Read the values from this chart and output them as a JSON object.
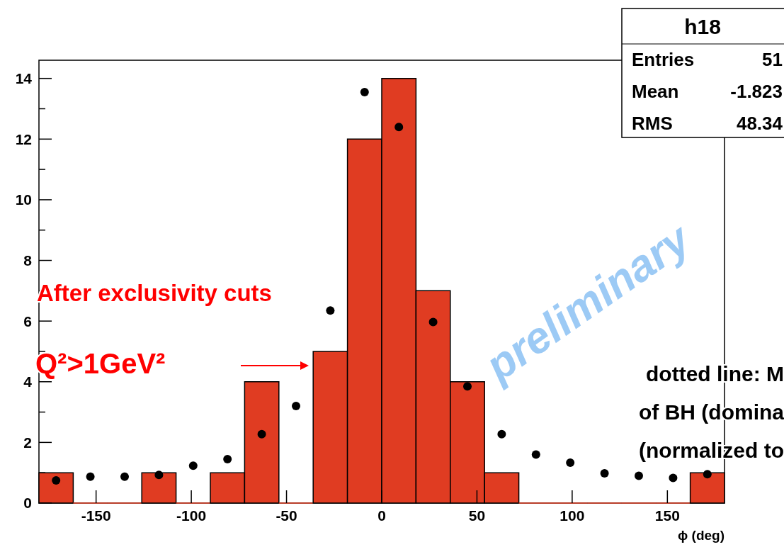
{
  "chart_data": {
    "type": "histogram",
    "xlabel": "ϕ (deg)",
    "bins": [
      -180,
      -162,
      -144,
      -126,
      -108,
      -90,
      -72,
      -54,
      -36,
      -18,
      0,
      18,
      36,
      54,
      72,
      90,
      108,
      126,
      144,
      162,
      180
    ],
    "series": [
      {
        "color": "#e03c22",
        "values": [
          1,
          0,
          0,
          1,
          0,
          1,
          4,
          0,
          5,
          12,
          14,
          7,
          4,
          1,
          0,
          0,
          0,
          0,
          0,
          1
        ]
      },
      {
        "type": "scatter",
        "color": "#000000",
        "x": [
          -171,
          -153,
          -135,
          -117,
          -99,
          -81,
          -63,
          -45,
          -27,
          -9,
          9,
          27,
          45,
          63,
          81,
          99,
          117,
          135,
          153,
          171
        ],
        "values": [
          0.75,
          0.87,
          0.87,
          0.93,
          1.23,
          1.45,
          2.27,
          3.2,
          6.35,
          13.55,
          12.4,
          5.97,
          3.85,
          2.27,
          1.6,
          1.33,
          0.98,
          0.9,
          0.83,
          0.95
        ]
      }
    ],
    "marker": "circle",
    "xlim": [
      -180,
      180
    ],
    "ylim": [
      0,
      14.6
    ],
    "xticks": [
      -150,
      -100,
      -50,
      0,
      50,
      100,
      150
    ],
    "yticks": [
      0,
      {
        "value": 1,
        "label": null
      },
      2,
      {
        "value": 3,
        "label": null
      },
      4,
      {
        "value": 5,
        "label": null
      },
      6,
      {
        "value": 7,
        "label": null
      },
      8,
      {
        "value": 9,
        "label": null
      },
      10,
      {
        "value": 11,
        "label": null
      },
      12,
      {
        "value": 13,
        "label": null
      },
      14
    ],
    "annotations": [
      "After exclusivity cuts",
      "Q²>1GeV²",
      "preliminary",
      "dotted line: M",
      "of BH (domina",
      "(normalized to",
      "h18",
      "Entries",
      "51",
      "Mean",
      "-1.823",
      "RMS",
      "48.34"
    ]
  }
}
